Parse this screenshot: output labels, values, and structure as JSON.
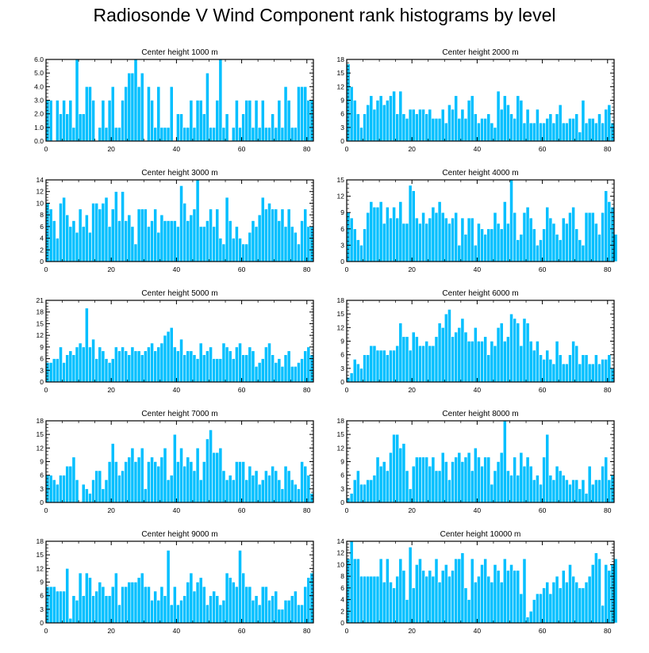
{
  "title": "Radiosonde V Wind Component rank histograms by level",
  "colors": {
    "bar": "#00bfff",
    "bar_edge": "#ffffff",
    "frame": "#000000"
  },
  "chart_data": [
    {
      "type": "bar",
      "title": "Center height 1000 m",
      "xlim": [
        0,
        82
      ],
      "ylim": [
        0,
        6.0
      ],
      "xticks": [
        0,
        20,
        40,
        60,
        80
      ],
      "yticks": [
        0,
        1,
        2,
        3,
        4,
        5,
        6
      ],
      "ytick_labels": [
        "0.0",
        "1.0",
        "2.0",
        "3.0",
        "4.0",
        "5.0",
        "6.0"
      ],
      "values": [
        3,
        3,
        0,
        3,
        2,
        3,
        2,
        3,
        1,
        6,
        2,
        2,
        4,
        4,
        3,
        0,
        1,
        3,
        1,
        3,
        4,
        1,
        1,
        3,
        4,
        5,
        5,
        6,
        4,
        5,
        0,
        4,
        3,
        1,
        4,
        1,
        1,
        1,
        4,
        0,
        2,
        2,
        1,
        1,
        3,
        1,
        3,
        3,
        2,
        5,
        1,
        1,
        3,
        6,
        1,
        2,
        0,
        1,
        3,
        1,
        2,
        3,
        3,
        1,
        3,
        1,
        3,
        1,
        1,
        2,
        1,
        3,
        1,
        4,
        3,
        1,
        1,
        4,
        4,
        4,
        3,
        3
      ]
    },
    {
      "type": "bar",
      "title": "Center height 2000 m",
      "xlim": [
        0,
        82
      ],
      "ylim": [
        0,
        18
      ],
      "xticks": [
        0,
        20,
        40,
        60,
        80
      ],
      "yticks": [
        0,
        3,
        6,
        9,
        12,
        15,
        18
      ],
      "ytick_labels": [
        "0",
        "3",
        "6",
        "9",
        "12",
        "15",
        "18"
      ],
      "values": [
        17,
        12,
        9,
        6,
        3,
        6,
        8,
        10,
        7,
        9,
        10,
        8,
        9,
        10,
        11,
        6,
        11,
        6,
        5,
        7,
        7,
        6,
        7,
        7,
        6,
        7,
        5,
        5,
        5,
        7,
        4,
        8,
        7,
        10,
        5,
        7,
        5,
        9,
        10,
        6,
        4,
        5,
        5,
        6,
        4,
        3,
        11,
        7,
        10,
        8,
        6,
        5,
        10,
        9,
        4,
        7,
        4,
        4,
        7,
        4,
        4,
        5,
        6,
        4,
        6,
        8,
        4,
        4,
        5,
        5,
        6,
        2,
        9,
        4,
        5,
        5,
        4,
        6,
        4,
        7,
        8,
        4
      ]
    },
    {
      "type": "bar",
      "title": "Center height 3000 m",
      "xlim": [
        0,
        82
      ],
      "ylim": [
        0,
        14
      ],
      "xticks": [
        0,
        20,
        40,
        60,
        80
      ],
      "yticks": [
        0,
        2,
        4,
        6,
        8,
        10,
        12,
        14
      ],
      "ytick_labels": [
        "0",
        "2",
        "4",
        "6",
        "8",
        "10",
        "12",
        "14"
      ],
      "values": [
        10,
        9,
        7,
        4,
        10,
        11,
        8,
        6,
        7,
        5,
        9,
        6,
        8,
        5,
        10,
        10,
        9,
        10,
        11,
        6,
        9,
        12,
        7,
        12,
        7,
        8,
        6,
        3,
        9,
        9,
        9,
        6,
        7,
        9,
        5,
        8,
        7,
        7,
        7,
        7,
        6,
        13,
        10,
        7,
        8,
        9,
        14,
        6,
        6,
        7,
        9,
        6,
        9,
        4,
        3,
        11,
        7,
        4,
        6,
        4,
        3,
        3,
        5,
        7,
        6,
        8,
        11,
        9,
        10,
        9,
        9,
        7,
        9,
        6,
        9,
        6,
        5,
        3,
        7,
        9,
        6,
        6
      ]
    },
    {
      "type": "bar",
      "title": "Center height 4000 m",
      "xlim": [
        0,
        82
      ],
      "ylim": [
        0,
        15
      ],
      "xticks": [
        0,
        20,
        40,
        60,
        80
      ],
      "yticks": [
        0,
        3,
        6,
        9,
        12,
        15
      ],
      "ytick_labels": [
        "0",
        "3",
        "6",
        "9",
        "12",
        "15"
      ],
      "values": [
        9,
        8,
        6,
        4,
        3,
        6,
        9,
        11,
        10,
        10,
        11,
        7,
        10,
        8,
        10,
        8,
        11,
        7,
        7,
        14,
        13,
        8,
        7,
        9,
        7,
        8,
        10,
        9,
        11,
        9,
        8,
        7,
        8,
        9,
        3,
        8,
        5,
        8,
        8,
        3,
        7,
        6,
        5,
        6,
        6,
        9,
        7,
        6,
        11,
        7,
        15,
        9,
        4,
        5,
        9,
        10,
        8,
        6,
        3,
        4,
        6,
        10,
        8,
        7,
        5,
        4,
        8,
        7,
        9,
        10,
        6,
        4,
        3,
        9,
        9,
        9,
        7,
        5,
        9,
        13,
        11,
        10,
        5
      ]
    },
    {
      "type": "bar",
      "title": "Center height 5000 m",
      "xlim": [
        0,
        82
      ],
      "ylim": [
        0,
        21
      ],
      "xticks": [
        0,
        20,
        40,
        60,
        80
      ],
      "yticks": [
        0,
        3,
        6,
        9,
        12,
        15,
        18,
        21
      ],
      "ytick_labels": [
        "0",
        "3",
        "6",
        "9",
        "12",
        "15",
        "18",
        "21"
      ],
      "values": [
        5,
        5,
        6,
        6,
        9,
        5,
        7,
        8,
        7,
        9,
        10,
        9,
        19,
        9,
        11,
        6,
        9,
        8,
        6,
        5,
        6,
        9,
        8,
        9,
        8,
        7,
        9,
        8,
        8,
        7,
        8,
        9,
        10,
        8,
        9,
        10,
        12,
        13,
        14,
        9,
        8,
        11,
        7,
        8,
        8,
        7,
        6,
        10,
        7,
        8,
        9,
        6,
        6,
        6,
        10,
        9,
        8,
        6,
        9,
        10,
        7,
        7,
        9,
        8,
        4,
        5,
        6,
        9,
        10,
        7,
        5,
        6,
        4,
        7,
        8,
        4,
        4,
        5,
        6,
        8,
        9,
        7
      ]
    },
    {
      "type": "bar",
      "title": "Center height 6000 m",
      "xlim": [
        0,
        82
      ],
      "ylim": [
        0,
        18
      ],
      "xticks": [
        0,
        20,
        40,
        60,
        80
      ],
      "yticks": [
        0,
        3,
        6,
        9,
        12,
        15,
        18
      ],
      "ytick_labels": [
        "0",
        "3",
        "6",
        "9",
        "12",
        "15",
        "18"
      ],
      "values": [
        1,
        2,
        5,
        4,
        3,
        6,
        6,
        8,
        8,
        7,
        7,
        7,
        6,
        7,
        7,
        8,
        13,
        10,
        10,
        7,
        11,
        10,
        8,
        8,
        9,
        8,
        8,
        10,
        13,
        12,
        15,
        16,
        10,
        11,
        12,
        14,
        11,
        9,
        9,
        12,
        9,
        9,
        10,
        6,
        9,
        8,
        12,
        13,
        9,
        10,
        15,
        14,
        13,
        8,
        14,
        13,
        9,
        7,
        9,
        6,
        5,
        7,
        5,
        4,
        9,
        6,
        4,
        4,
        6,
        9,
        8,
        4,
        6,
        6,
        4,
        4,
        6,
        4,
        5,
        5,
        6,
        3
      ]
    },
    {
      "type": "bar",
      "title": "Center height 7000 m",
      "xlim": [
        0,
        82
      ],
      "ylim": [
        0,
        18
      ],
      "xticks": [
        0,
        20,
        40,
        60,
        80
      ],
      "yticks": [
        0,
        3,
        6,
        9,
        12,
        15,
        18
      ],
      "ytick_labels": [
        "0",
        "3",
        "6",
        "9",
        "12",
        "15",
        "18"
      ],
      "values": [
        6,
        6,
        5,
        4,
        6,
        6,
        8,
        8,
        10,
        5,
        0,
        4,
        3,
        2,
        5,
        7,
        7,
        3,
        5,
        9,
        13,
        9,
        6,
        7,
        9,
        10,
        12,
        9,
        10,
        12,
        3,
        9,
        10,
        9,
        8,
        10,
        12,
        5,
        6,
        15,
        9,
        12,
        8,
        10,
        9,
        7,
        12,
        5,
        9,
        14,
        16,
        11,
        11,
        12,
        7,
        5,
        6,
        5,
        9,
        9,
        9,
        5,
        8,
        6,
        7,
        4,
        5,
        7,
        6,
        8,
        7,
        5,
        3,
        8,
        7,
        5,
        4,
        3,
        9,
        8,
        6,
        2
      ]
    },
    {
      "type": "bar",
      "title": "Center height 8000 m",
      "xlim": [
        0,
        82
      ],
      "ylim": [
        0,
        18
      ],
      "xticks": [
        0,
        20,
        40,
        60,
        80
      ],
      "yticks": [
        0,
        3,
        6,
        9,
        12,
        15,
        18
      ],
      "ytick_labels": [
        "0",
        "3",
        "6",
        "9",
        "12",
        "15",
        "18"
      ],
      "values": [
        1,
        2,
        5,
        7,
        4,
        4,
        5,
        5,
        6,
        10,
        8,
        9,
        7,
        11,
        15,
        15,
        12,
        13,
        7,
        3,
        8,
        10,
        10,
        10,
        10,
        8,
        10,
        7,
        7,
        11,
        9,
        5,
        9,
        10,
        11,
        9,
        10,
        11,
        7,
        12,
        10,
        8,
        10,
        10,
        4,
        7,
        9,
        11,
        18,
        7,
        6,
        10,
        6,
        11,
        8,
        10,
        8,
        5,
        6,
        4,
        10,
        15,
        6,
        5,
        8,
        7,
        6,
        5,
        4,
        5,
        5,
        3,
        5,
        2,
        8,
        4,
        5,
        5,
        8,
        10,
        5,
        6
      ]
    },
    {
      "type": "bar",
      "title": "Center height 9000 m",
      "xlim": [
        0,
        82
      ],
      "ylim": [
        0,
        18
      ],
      "xticks": [
        0,
        20,
        40,
        60,
        80
      ],
      "yticks": [
        0,
        3,
        6,
        9,
        12,
        15,
        18
      ],
      "ytick_labels": [
        "0",
        "3",
        "6",
        "9",
        "12",
        "15",
        "18"
      ],
      "values": [
        8,
        8,
        8,
        7,
        7,
        7,
        12,
        1,
        6,
        5,
        11,
        6,
        11,
        10,
        6,
        7,
        9,
        8,
        6,
        6,
        8,
        11,
        4,
        8,
        8,
        9,
        9,
        9,
        10,
        11,
        8,
        8,
        5,
        7,
        5,
        8,
        6,
        16,
        4,
        8,
        4,
        5,
        6,
        9,
        11,
        7,
        9,
        10,
        8,
        4,
        6,
        7,
        6,
        4,
        5,
        11,
        10,
        9,
        8,
        16,
        11,
        8,
        8,
        5,
        6,
        4,
        8,
        8,
        5,
        6,
        7,
        3,
        3,
        5,
        5,
        6,
        7,
        4,
        4,
        8,
        10,
        11
      ]
    },
    {
      "type": "bar",
      "title": "Center height 10000 m",
      "xlim": [
        0,
        82
      ],
      "ylim": [
        0,
        14
      ],
      "xticks": [
        0,
        20,
        40,
        60,
        80
      ],
      "yticks": [
        0,
        2,
        4,
        6,
        8,
        10,
        12,
        14
      ],
      "ytick_labels": [
        "0",
        "2",
        "4",
        "6",
        "8",
        "10",
        "12",
        "14"
      ],
      "values": [
        11,
        14,
        11,
        11,
        8,
        8,
        8,
        8,
        8,
        8,
        11,
        7,
        11,
        7,
        6,
        8,
        11,
        9,
        4,
        13,
        6,
        10,
        11,
        9,
        8,
        9,
        8,
        11,
        7,
        9,
        10,
        8,
        9,
        11,
        11,
        12,
        6,
        4,
        11,
        7,
        8,
        10,
        11,
        8,
        7,
        10,
        9,
        7,
        11,
        9,
        10,
        9,
        9,
        5,
        11,
        1,
        2,
        4,
        5,
        5,
        6,
        7,
        5,
        7,
        8,
        6,
        9,
        7,
        10,
        8,
        7,
        6,
        6,
        7,
        8,
        10,
        12,
        11,
        3,
        10,
        9,
        10,
        11
      ]
    }
  ]
}
